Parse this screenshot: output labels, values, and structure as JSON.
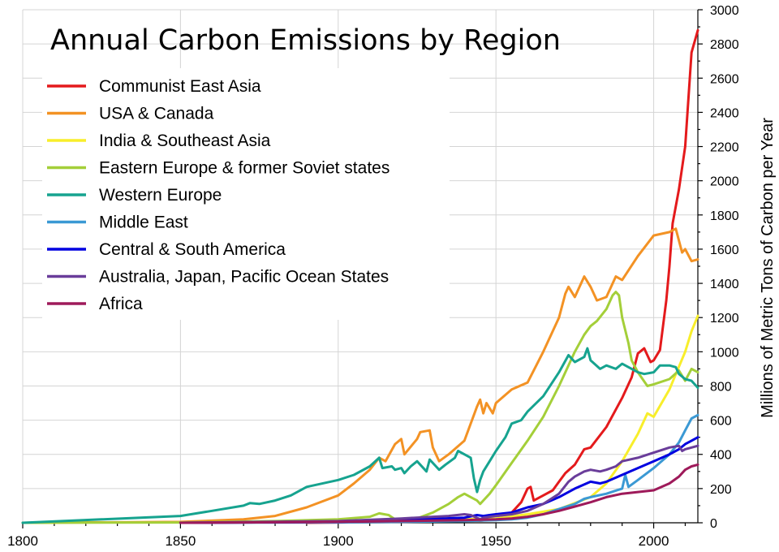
{
  "chart_data": {
    "type": "line",
    "title": "Annual Carbon Emissions by Region",
    "xlabel": "",
    "ylabel": "Millions of Metric Tons of Carbon per Year",
    "xlim": [
      1800,
      2014
    ],
    "ylim": [
      0,
      3000
    ],
    "xticks": [
      1800,
      1850,
      1900,
      1950,
      2000
    ],
    "yticks": [
      0,
      200,
      400,
      600,
      800,
      1000,
      1200,
      1400,
      1600,
      1800,
      2000,
      2200,
      2400,
      2600,
      2800,
      3000
    ],
    "grid": true,
    "legend_position": "top-left",
    "series": [
      {
        "name": "Communist East Asia",
        "color": "#e41a1c",
        "x": [
          1890,
          1900,
          1920,
          1940,
          1945,
          1950,
          1955,
          1958,
          1960,
          1961,
          1962,
          1965,
          1968,
          1970,
          1972,
          1975,
          1978,
          1980,
          1985,
          1990,
          1993,
          1995,
          1997,
          1999,
          2000,
          2002,
          2004,
          2005,
          2006,
          2008,
          2010,
          2012,
          2014
        ],
        "y": [
          0,
          2,
          5,
          15,
          12,
          22,
          60,
          120,
          200,
          210,
          130,
          160,
          190,
          240,
          290,
          340,
          430,
          440,
          560,
          730,
          850,
          990,
          1020,
          940,
          950,
          1010,
          1300,
          1500,
          1750,
          1950,
          2200,
          2750,
          2880
        ]
      },
      {
        "name": "USA & Canada",
        "color": "#f39224",
        "x": [
          1800,
          1850,
          1870,
          1880,
          1890,
          1900,
          1905,
          1910,
          1913,
          1915,
          1918,
          1920,
          1921,
          1925,
          1926,
          1929,
          1930,
          1932,
          1935,
          1940,
          1944,
          1945,
          1946,
          1947,
          1949,
          1950,
          1955,
          1960,
          1965,
          1970,
          1972,
          1973,
          1975,
          1978,
          1980,
          1982,
          1985,
          1988,
          1990,
          1995,
          2000,
          2005,
          2007,
          2009,
          2010,
          2012,
          2014
        ],
        "y": [
          0,
          5,
          20,
          40,
          90,
          160,
          230,
          310,
          380,
          360,
          460,
          490,
          400,
          490,
          530,
          540,
          440,
          360,
          400,
          480,
          680,
          720,
          640,
          700,
          640,
          700,
          780,
          820,
          1000,
          1200,
          1340,
          1380,
          1320,
          1440,
          1380,
          1300,
          1320,
          1440,
          1420,
          1560,
          1680,
          1700,
          1720,
          1580,
          1600,
          1530,
          1540
        ]
      },
      {
        "name": "India & Southeast Asia",
        "color": "#f8ee2b",
        "x": [
          1850,
          1900,
          1920,
          1940,
          1950,
          1960,
          1970,
          1980,
          1985,
          1990,
          1995,
          1998,
          2000,
          2005,
          2010,
          2012,
          2014
        ],
        "y": [
          0,
          5,
          10,
          20,
          25,
          50,
          80,
          150,
          230,
          360,
          520,
          640,
          620,
          780,
          1000,
          1120,
          1210
        ]
      },
      {
        "name": "Eastern Europe & former Soviet states",
        "color": "#a4cf39",
        "x": [
          1800,
          1850,
          1880,
          1900,
          1910,
          1913,
          1916,
          1918,
          1920,
          1925,
          1930,
          1935,
          1938,
          1940,
          1942,
          1944,
          1945,
          1946,
          1948,
          1950,
          1955,
          1960,
          1965,
          1970,
          1975,
          1978,
          1980,
          1982,
          1985,
          1987,
          1988,
          1989,
          1990,
          1992,
          1993,
          1995,
          1998,
          2000,
          2005,
          2008,
          2010,
          2012,
          2014
        ],
        "y": [
          0,
          2,
          10,
          20,
          35,
          55,
          45,
          20,
          10,
          25,
          60,
          110,
          150,
          170,
          150,
          130,
          110,
          130,
          170,
          220,
          350,
          480,
          620,
          800,
          1000,
          1100,
          1150,
          1180,
          1250,
          1330,
          1350,
          1330,
          1200,
          1050,
          950,
          880,
          800,
          810,
          840,
          890,
          830,
          900,
          880
        ]
      },
      {
        "name": "Western Europe",
        "color": "#16a38f",
        "x": [
          1800,
          1850,
          1860,
          1870,
          1872,
          1875,
          1880,
          1885,
          1890,
          1900,
          1905,
          1910,
          1913,
          1914,
          1917,
          1918,
          1920,
          1921,
          1923,
          1925,
          1928,
          1929,
          1931,
          1932,
          1934,
          1937,
          1938,
          1940,
          1942,
          1943,
          1944,
          1945,
          1946,
          1948,
          1950,
          1953,
          1955,
          1958,
          1960,
          1965,
          1970,
          1973,
          1974,
          1975,
          1978,
          1979,
          1980,
          1983,
          1985,
          1988,
          1990,
          1992,
          1995,
          1997,
          2000,
          2002,
          2005,
          2007,
          2008,
          2010,
          2012,
          2014
        ],
        "y": [
          0,
          40,
          70,
          100,
          115,
          110,
          130,
          160,
          210,
          250,
          280,
          330,
          380,
          320,
          330,
          310,
          320,
          290,
          330,
          360,
          300,
          370,
          330,
          310,
          340,
          380,
          420,
          400,
          380,
          260,
          180,
          250,
          300,
          360,
          420,
          500,
          580,
          600,
          650,
          740,
          880,
          980,
          960,
          940,
          970,
          1020,
          950,
          900,
          920,
          900,
          930,
          910,
          880,
          870,
          880,
          920,
          920,
          910,
          870,
          840,
          830,
          790
        ]
      },
      {
        "name": "Middle East",
        "color": "#3b99d4",
        "x": [
          1850,
          1900,
          1920,
          1940,
          1950,
          1955,
          1960,
          1965,
          1970,
          1975,
          1978,
          1980,
          1985,
          1990,
          1991,
          1992,
          1995,
          2000,
          2005,
          2008,
          2010,
          2012,
          2014
        ],
        "y": [
          0,
          2,
          5,
          10,
          15,
          20,
          30,
          50,
          80,
          110,
          140,
          150,
          170,
          200,
          280,
          210,
          250,
          320,
          400,
          470,
          540,
          610,
          630
        ]
      },
      {
        "name": "Central & South America",
        "color": "#0000e0",
        "x": [
          1850,
          1900,
          1920,
          1940,
          1944,
          1946,
          1948,
          1950,
          1955,
          1960,
          1965,
          1970,
          1975,
          1980,
          1983,
          1985,
          1990,
          1995,
          2000,
          2005,
          2008,
          2010,
          2012,
          2014
        ],
        "y": [
          0,
          5,
          15,
          30,
          45,
          40,
          45,
          50,
          60,
          90,
          110,
          150,
          200,
          240,
          230,
          240,
          280,
          320,
          360,
          400,
          430,
          460,
          480,
          500
        ]
      },
      {
        "name": "Australia, Japan, Pacific Ocean States",
        "color": "#6a3d9a",
        "x": [
          1850,
          1900,
          1920,
          1935,
          1940,
          1942,
          1945,
          1946,
          1950,
          1955,
          1960,
          1965,
          1970,
          1973,
          1975,
          1978,
          1980,
          1983,
          1985,
          1988,
          1990,
          1995,
          2000,
          2005,
          2008,
          2009,
          2010,
          2012,
          2014
        ],
        "y": [
          0,
          10,
          25,
          40,
          50,
          45,
          20,
          30,
          40,
          50,
          70,
          110,
          170,
          240,
          270,
          300,
          310,
          300,
          310,
          330,
          360,
          380,
          410,
          440,
          450,
          420,
          430,
          440,
          450
        ]
      },
      {
        "name": "Africa",
        "color": "#9e1a5a",
        "x": [
          1850,
          1900,
          1920,
          1940,
          1950,
          1955,
          1960,
          1965,
          1970,
          1975,
          1980,
          1985,
          1990,
          1995,
          2000,
          2005,
          2008,
          2010,
          2012,
          2014
        ],
        "y": [
          0,
          5,
          10,
          15,
          20,
          25,
          35,
          50,
          70,
          95,
          120,
          150,
          170,
          180,
          190,
          230,
          270,
          310,
          330,
          340
        ]
      }
    ]
  }
}
